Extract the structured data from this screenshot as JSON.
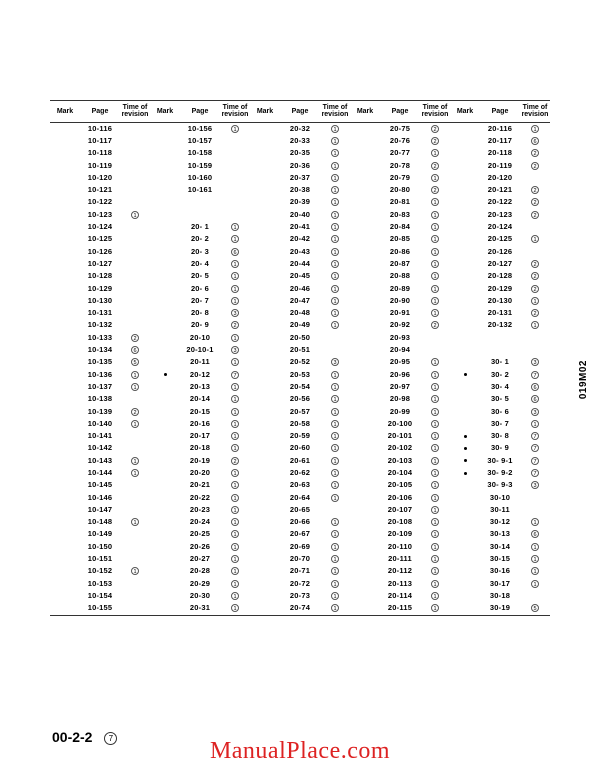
{
  "document": {
    "page_number_label": "00-2-2",
    "page_number_sub": "7",
    "side_code": "019M02",
    "watermark": "ManualPlace.com"
  },
  "table": {
    "headers": {
      "mark": "Mark",
      "page": "Page",
      "revision": "Time of\nrevision"
    },
    "column_count": 5,
    "row_count": 40,
    "columns": [
      [
        {
          "mark": "",
          "page": "10-116",
          "rev": ""
        },
        {
          "mark": "",
          "page": "10-117",
          "rev": ""
        },
        {
          "mark": "",
          "page": "10-118",
          "rev": ""
        },
        {
          "mark": "",
          "page": "10-119",
          "rev": ""
        },
        {
          "mark": "",
          "page": "10-120",
          "rev": ""
        },
        {
          "mark": "",
          "page": "10-121",
          "rev": ""
        },
        {
          "mark": "",
          "page": "10-122",
          "rev": ""
        },
        {
          "mark": "",
          "page": "10-123",
          "rev": "1"
        },
        {
          "mark": "",
          "page": "10-124",
          "rev": ""
        },
        {
          "mark": "",
          "page": "10-125",
          "rev": ""
        },
        {
          "mark": "",
          "page": "10-126",
          "rev": ""
        },
        {
          "mark": "",
          "page": "10-127",
          "rev": ""
        },
        {
          "mark": "",
          "page": "10-128",
          "rev": ""
        },
        {
          "mark": "",
          "page": "10-129",
          "rev": ""
        },
        {
          "mark": "",
          "page": "10-130",
          "rev": ""
        },
        {
          "mark": "",
          "page": "10-131",
          "rev": ""
        },
        {
          "mark": "",
          "page": "10-132",
          "rev": ""
        },
        {
          "mark": "",
          "page": "10-133",
          "rev": "2"
        },
        {
          "mark": "",
          "page": "10-134",
          "rev": "6"
        },
        {
          "mark": "",
          "page": "10-135",
          "rev": "5"
        },
        {
          "mark": "",
          "page": "10-136",
          "rev": "1"
        },
        {
          "mark": "",
          "page": "10-137",
          "rev": "1"
        },
        {
          "mark": "",
          "page": "10-138",
          "rev": ""
        },
        {
          "mark": "",
          "page": "10-139",
          "rev": "2"
        },
        {
          "mark": "",
          "page": "10-140",
          "rev": "1"
        },
        {
          "mark": "",
          "page": "10-141",
          "rev": ""
        },
        {
          "mark": "",
          "page": "10-142",
          "rev": ""
        },
        {
          "mark": "",
          "page": "10-143",
          "rev": "1"
        },
        {
          "mark": "",
          "page": "10-144",
          "rev": "1"
        },
        {
          "mark": "",
          "page": "10-145",
          "rev": ""
        },
        {
          "mark": "",
          "page": "10-146",
          "rev": ""
        },
        {
          "mark": "",
          "page": "10-147",
          "rev": ""
        },
        {
          "mark": "",
          "page": "10-148",
          "rev": "1"
        },
        {
          "mark": "",
          "page": "10-149",
          "rev": ""
        },
        {
          "mark": "",
          "page": "10-150",
          "rev": ""
        },
        {
          "mark": "",
          "page": "10-151",
          "rev": ""
        },
        {
          "mark": "",
          "page": "10-152",
          "rev": "1"
        },
        {
          "mark": "",
          "page": "10-153",
          "rev": ""
        },
        {
          "mark": "",
          "page": "10-154",
          "rev": ""
        },
        {
          "mark": "",
          "page": "10-155",
          "rev": ""
        }
      ],
      [
        {
          "mark": "",
          "page": "10-156",
          "rev": "1"
        },
        {
          "mark": "",
          "page": "10-157",
          "rev": ""
        },
        {
          "mark": "",
          "page": "10-158",
          "rev": ""
        },
        {
          "mark": "",
          "page": "10-159",
          "rev": ""
        },
        {
          "mark": "",
          "page": "10-160",
          "rev": ""
        },
        {
          "mark": "",
          "page": "10-161",
          "rev": ""
        },
        {
          "mark": "",
          "page": "",
          "rev": ""
        },
        {
          "mark": "",
          "page": "",
          "rev": ""
        },
        {
          "mark": "",
          "page": "20-  1",
          "rev": "1"
        },
        {
          "mark": "",
          "page": "20-  2",
          "rev": "1"
        },
        {
          "mark": "",
          "page": "20-  3",
          "rev": "6"
        },
        {
          "mark": "",
          "page": "20-  4",
          "rev": "1"
        },
        {
          "mark": "",
          "page": "20-  5",
          "rev": "1"
        },
        {
          "mark": "",
          "page": "20-  6",
          "rev": "1"
        },
        {
          "mark": "",
          "page": "20-  7",
          "rev": "1"
        },
        {
          "mark": "",
          "page": "20-  8",
          "rev": "3"
        },
        {
          "mark": "",
          "page": "20-  9",
          "rev": "2"
        },
        {
          "mark": "",
          "page": "20-10",
          "rev": "1"
        },
        {
          "mark": "",
          "page": "20-10-1",
          "rev": "3"
        },
        {
          "mark": "",
          "page": "20-11",
          "rev": "1"
        },
        {
          "mark": "•",
          "page": "20-12",
          "rev": "7"
        },
        {
          "mark": "",
          "page": "20-13",
          "rev": "1"
        },
        {
          "mark": "",
          "page": "20-14",
          "rev": "1"
        },
        {
          "mark": "",
          "page": "20-15",
          "rev": "1"
        },
        {
          "mark": "",
          "page": "20-16",
          "rev": "1"
        },
        {
          "mark": "",
          "page": "20-17",
          "rev": "1"
        },
        {
          "mark": "",
          "page": "20-18",
          "rev": "1"
        },
        {
          "mark": "",
          "page": "20-19",
          "rev": "2"
        },
        {
          "mark": "",
          "page": "20-20",
          "rev": "1"
        },
        {
          "mark": "",
          "page": "20-21",
          "rev": "1"
        },
        {
          "mark": "",
          "page": "20-22",
          "rev": "1"
        },
        {
          "mark": "",
          "page": "20-23",
          "rev": "1"
        },
        {
          "mark": "",
          "page": "20-24",
          "rev": "1"
        },
        {
          "mark": "",
          "page": "20-25",
          "rev": "1"
        },
        {
          "mark": "",
          "page": "20-26",
          "rev": "1"
        },
        {
          "mark": "",
          "page": "20-27",
          "rev": "1"
        },
        {
          "mark": "",
          "page": "20-28",
          "rev": "1"
        },
        {
          "mark": "",
          "page": "20-29",
          "rev": "1"
        },
        {
          "mark": "",
          "page": "20-30",
          "rev": "1"
        },
        {
          "mark": "",
          "page": "20-31",
          "rev": "1"
        }
      ],
      [
        {
          "mark": "",
          "page": "20-32",
          "rev": "1"
        },
        {
          "mark": "",
          "page": "20-33",
          "rev": "1"
        },
        {
          "mark": "",
          "page": "20-35",
          "rev": "1"
        },
        {
          "mark": "",
          "page": "20-36",
          "rev": "1"
        },
        {
          "mark": "",
          "page": "20-37",
          "rev": "1"
        },
        {
          "mark": "",
          "page": "20-38",
          "rev": "1"
        },
        {
          "mark": "",
          "page": "20-39",
          "rev": "1"
        },
        {
          "mark": "",
          "page": "20-40",
          "rev": "1"
        },
        {
          "mark": "",
          "page": "20-41",
          "rev": "1"
        },
        {
          "mark": "",
          "page": "20-42",
          "rev": "1"
        },
        {
          "mark": "",
          "page": "20-43",
          "rev": "1"
        },
        {
          "mark": "",
          "page": "20-44",
          "rev": "1"
        },
        {
          "mark": "",
          "page": "20-45",
          "rev": "1"
        },
        {
          "mark": "",
          "page": "20-46",
          "rev": "1"
        },
        {
          "mark": "",
          "page": "20-47",
          "rev": "1"
        },
        {
          "mark": "",
          "page": "20-48",
          "rev": "1"
        },
        {
          "mark": "",
          "page": "20-49",
          "rev": "1"
        },
        {
          "mark": "",
          "page": "20-50",
          "rev": ""
        },
        {
          "mark": "",
          "page": "20-51",
          "rev": ""
        },
        {
          "mark": "",
          "page": "20-52",
          "rev": "3"
        },
        {
          "mark": "",
          "page": "20-53",
          "rev": "1"
        },
        {
          "mark": "",
          "page": "20-54",
          "rev": "1"
        },
        {
          "mark": "",
          "page": "20-56",
          "rev": "1"
        },
        {
          "mark": "",
          "page": "20-57",
          "rev": "1"
        },
        {
          "mark": "",
          "page": "20-58",
          "rev": "1"
        },
        {
          "mark": "",
          "page": "20-59",
          "rev": "1"
        },
        {
          "mark": "",
          "page": "20-60",
          "rev": "1"
        },
        {
          "mark": "",
          "page": "20-61",
          "rev": "1"
        },
        {
          "mark": "",
          "page": "20-62",
          "rev": "1"
        },
        {
          "mark": "",
          "page": "20-63",
          "rev": "1"
        },
        {
          "mark": "",
          "page": "20-64",
          "rev": "1"
        },
        {
          "mark": "",
          "page": "20-65",
          "rev": ""
        },
        {
          "mark": "",
          "page": "20-66",
          "rev": "1"
        },
        {
          "mark": "",
          "page": "20-67",
          "rev": "1"
        },
        {
          "mark": "",
          "page": "20-69",
          "rev": "1"
        },
        {
          "mark": "",
          "page": "20-70",
          "rev": "1"
        },
        {
          "mark": "",
          "page": "20-71",
          "rev": "1"
        },
        {
          "mark": "",
          "page": "20-72",
          "rev": "1"
        },
        {
          "mark": "",
          "page": "20-73",
          "rev": "1"
        },
        {
          "mark": "",
          "page": "20-74",
          "rev": "1"
        }
      ],
      [
        {
          "mark": "",
          "page": "20-75",
          "rev": "2"
        },
        {
          "mark": "",
          "page": "20-76",
          "rev": "2"
        },
        {
          "mark": "",
          "page": "20-77",
          "rev": "1"
        },
        {
          "mark": "",
          "page": "20-78",
          "rev": "2"
        },
        {
          "mark": "",
          "page": "20-79",
          "rev": "1"
        },
        {
          "mark": "",
          "page": "20-80",
          "rev": "2"
        },
        {
          "mark": "",
          "page": "20-81",
          "rev": "1"
        },
        {
          "mark": "",
          "page": "20-83",
          "rev": "1"
        },
        {
          "mark": "",
          "page": "20-84",
          "rev": "1"
        },
        {
          "mark": "",
          "page": "20-85",
          "rev": "1"
        },
        {
          "mark": "",
          "page": "20-86",
          "rev": "1"
        },
        {
          "mark": "",
          "page": "20-87",
          "rev": "1"
        },
        {
          "mark": "",
          "page": "20-88",
          "rev": "1"
        },
        {
          "mark": "",
          "page": "20-89",
          "rev": "1"
        },
        {
          "mark": "",
          "page": "20-90",
          "rev": "1"
        },
        {
          "mark": "",
          "page": "20-91",
          "rev": "1"
        },
        {
          "mark": "",
          "page": "20-92",
          "rev": "2"
        },
        {
          "mark": "",
          "page": "20-93",
          "rev": ""
        },
        {
          "mark": "",
          "page": "20-94",
          "rev": ""
        },
        {
          "mark": "",
          "page": "20-95",
          "rev": "1"
        },
        {
          "mark": "",
          "page": "20-96",
          "rev": "1"
        },
        {
          "mark": "",
          "page": "20-97",
          "rev": "1"
        },
        {
          "mark": "",
          "page": "20-98",
          "rev": "1"
        },
        {
          "mark": "",
          "page": "20-99",
          "rev": "1"
        },
        {
          "mark": "",
          "page": "20-100",
          "rev": "1"
        },
        {
          "mark": "",
          "page": "20-101",
          "rev": "1"
        },
        {
          "mark": "",
          "page": "20-102",
          "rev": "1"
        },
        {
          "mark": "",
          "page": "20-103",
          "rev": "1"
        },
        {
          "mark": "",
          "page": "20-104",
          "rev": "1"
        },
        {
          "mark": "",
          "page": "20-105",
          "rev": "1"
        },
        {
          "mark": "",
          "page": "20-106",
          "rev": "1"
        },
        {
          "mark": "",
          "page": "20-107",
          "rev": "1"
        },
        {
          "mark": "",
          "page": "20-108",
          "rev": "1"
        },
        {
          "mark": "",
          "page": "20-109",
          "rev": "1"
        },
        {
          "mark": "",
          "page": "20-110",
          "rev": "1"
        },
        {
          "mark": "",
          "page": "20-111",
          "rev": "1"
        },
        {
          "mark": "",
          "page": "20-112",
          "rev": "1"
        },
        {
          "mark": "",
          "page": "20-113",
          "rev": "1"
        },
        {
          "mark": "",
          "page": "20-114",
          "rev": "1"
        },
        {
          "mark": "",
          "page": "20-115",
          "rev": "1"
        }
      ],
      [
        {
          "mark": "",
          "page": "20-116",
          "rev": "1"
        },
        {
          "mark": "",
          "page": "20-117",
          "rev": "6"
        },
        {
          "mark": "",
          "page": "20-118",
          "rev": "2"
        },
        {
          "mark": "",
          "page": "20-119",
          "rev": "2"
        },
        {
          "mark": "",
          "page": "20-120",
          "rev": ""
        },
        {
          "mark": "",
          "page": "20-121",
          "rev": "2"
        },
        {
          "mark": "",
          "page": "20-122",
          "rev": "2"
        },
        {
          "mark": "",
          "page": "20-123",
          "rev": "2"
        },
        {
          "mark": "",
          "page": "20-124",
          "rev": ""
        },
        {
          "mark": "",
          "page": "20-125",
          "rev": "1"
        },
        {
          "mark": "",
          "page": "20-126",
          "rev": ""
        },
        {
          "mark": "",
          "page": "20-127",
          "rev": "2"
        },
        {
          "mark": "",
          "page": "20-128",
          "rev": "2"
        },
        {
          "mark": "",
          "page": "20-129",
          "rev": "2"
        },
        {
          "mark": "",
          "page": "20-130",
          "rev": "1"
        },
        {
          "mark": "",
          "page": "20-131",
          "rev": "2"
        },
        {
          "mark": "",
          "page": "20-132",
          "rev": "1"
        },
        {
          "mark": "",
          "page": "",
          "rev": ""
        },
        {
          "mark": "",
          "page": "",
          "rev": ""
        },
        {
          "mark": "",
          "page": "30-  1",
          "rev": "3"
        },
        {
          "mark": "•",
          "page": "30-  2",
          "rev": "7"
        },
        {
          "mark": "",
          "page": "30-  4",
          "rev": "6"
        },
        {
          "mark": "",
          "page": "30-  5",
          "rev": "6"
        },
        {
          "mark": "",
          "page": "30-  6",
          "rev": "3"
        },
        {
          "mark": "",
          "page": "30-  7",
          "rev": "1"
        },
        {
          "mark": "•",
          "page": "30-  8",
          "rev": "7"
        },
        {
          "mark": "•",
          "page": "30-  9",
          "rev": "7"
        },
        {
          "mark": "•",
          "page": "30- 9-1",
          "rev": "7"
        },
        {
          "mark": "•",
          "page": "30- 9-2",
          "rev": "7"
        },
        {
          "mark": "",
          "page": "30- 9-3",
          "rev": "3"
        },
        {
          "mark": "",
          "page": "30-10",
          "rev": ""
        },
        {
          "mark": "",
          "page": "30-11",
          "rev": ""
        },
        {
          "mark": "",
          "page": "30-12",
          "rev": "1"
        },
        {
          "mark": "",
          "page": "30-13",
          "rev": "6"
        },
        {
          "mark": "",
          "page": "30-14",
          "rev": "1"
        },
        {
          "mark": "",
          "page": "30-15",
          "rev": "1"
        },
        {
          "mark": "",
          "page": "30-16",
          "rev": "1"
        },
        {
          "mark": "",
          "page": "30-17",
          "rev": "1"
        },
        {
          "mark": "",
          "page": "30-18",
          "rev": ""
        },
        {
          "mark": "",
          "page": "30-19",
          "rev": "5"
        }
      ]
    ]
  }
}
